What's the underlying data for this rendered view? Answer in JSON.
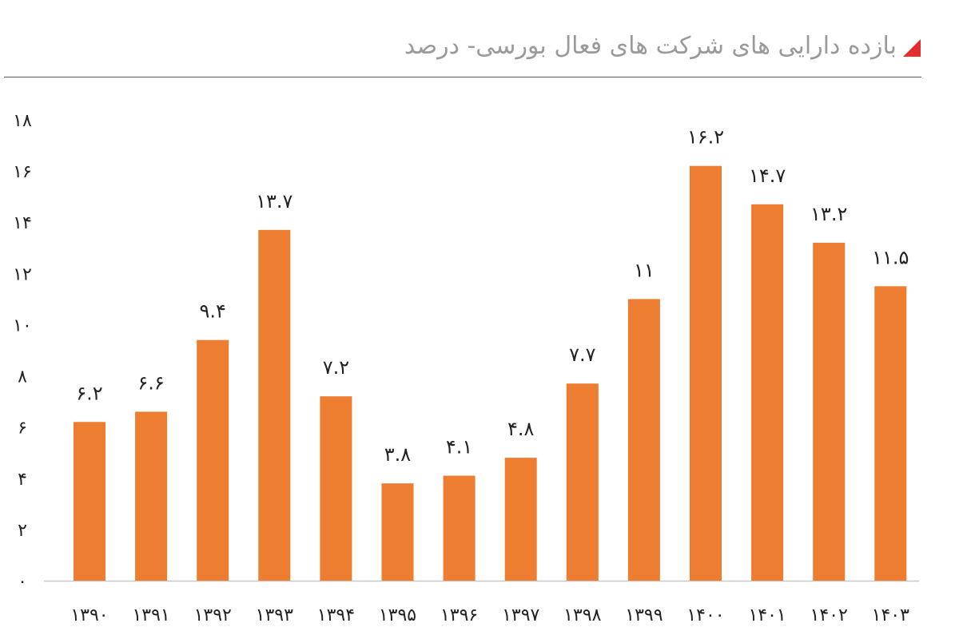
{
  "title": "بازده دارایی های شرکت های فعال بورسی- درصد",
  "colors": {
    "bar": "#ed7d31",
    "marker": "#e62d2d",
    "title": "#9a9a9a",
    "axis": "#c8c8c8"
  },
  "chart_data": {
    "type": "bar",
    "title": "بازده دارایی های شرکت های فعال بورسی- درصد",
    "categories": [
      "۱۳۹۰",
      "۱۳۹۱",
      "۱۳۹۲",
      "۱۳۹۳",
      "۱۳۹۴",
      "۱۳۹۵",
      "۱۳۹۶",
      "۱۳۹۷",
      "۱۳۹۸",
      "۱۳۹۹",
      "۱۴۰۰",
      "۱۴۰۱",
      "۱۴۰۲",
      "۱۴۰۳"
    ],
    "values": [
      6.2,
      6.6,
      9.4,
      13.7,
      7.2,
      3.8,
      4.1,
      4.8,
      7.7,
      11,
      16.2,
      14.7,
      13.2,
      11.5
    ],
    "data_labels": [
      "۶.۲",
      "۶.۶",
      "۹.۴",
      "۱۳.۷",
      "۷.۲",
      "۳.۸",
      "۴.۱",
      "۴.۸",
      "۷.۷",
      "۱۱",
      "۱۶.۲",
      "۱۴.۷",
      "۱۳.۲",
      "۱۱.۵"
    ],
    "yticks": [
      0,
      2,
      4,
      6,
      8,
      10,
      12,
      14,
      16,
      18
    ],
    "ytick_labels": [
      "۰",
      "۲",
      "۴",
      "۶",
      "۸",
      "۱۰",
      "۱۲",
      "۱۴",
      "۱۶",
      "۱۸"
    ],
    "ylim": [
      0,
      18
    ],
    "xlabel": "",
    "ylabel": "",
    "grid": false,
    "legend": "none"
  }
}
